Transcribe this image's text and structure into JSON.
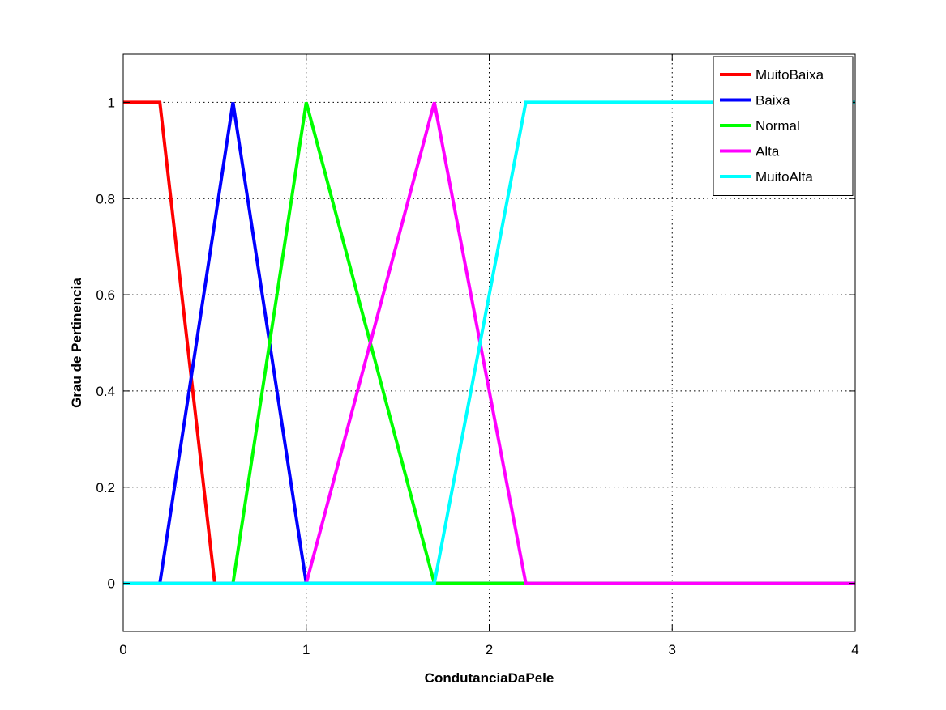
{
  "chart_data": {
    "type": "line",
    "title": "",
    "xlabel": "CondutanciaDaPele",
    "ylabel": "Grau de Pertinencia",
    "xlim": [
      0,
      4
    ],
    "ylim": [
      -0.1,
      1.1
    ],
    "xticks": [
      0,
      1,
      2,
      3,
      4
    ],
    "yticks": [
      0,
      0.2,
      0.4,
      0.6,
      0.8,
      1
    ],
    "xtick_labels": [
      "0",
      "1",
      "2",
      "3",
      "4"
    ],
    "ytick_labels": [
      "0",
      "0.2",
      "0.4",
      "0.6",
      "0.8",
      "1"
    ],
    "grid": true,
    "legend_position": "top-right",
    "series": [
      {
        "name": "MuitoBaixa",
        "color": "#ff0000",
        "x": [
          0,
          0.2,
          0.5,
          4
        ],
        "y": [
          1,
          1,
          0,
          0
        ]
      },
      {
        "name": "Baixa",
        "color": "#0000ff",
        "x": [
          0,
          0.2,
          0.6,
          1.0,
          4
        ],
        "y": [
          0,
          0,
          1,
          0,
          0
        ]
      },
      {
        "name": "Normal",
        "color": "#00ff00",
        "x": [
          0,
          0.6,
          1.0,
          1.7,
          4
        ],
        "y": [
          0,
          0,
          1,
          0,
          0
        ]
      },
      {
        "name": "Alta",
        "color": "#ff00ff",
        "x": [
          0,
          1.0,
          1.7,
          2.2,
          4
        ],
        "y": [
          0,
          0,
          1,
          0,
          0
        ]
      },
      {
        "name": "MuitoAlta",
        "color": "#00ffff",
        "x": [
          0,
          1.7,
          2.2,
          4
        ],
        "y": [
          0,
          0,
          1,
          1
        ]
      }
    ]
  }
}
